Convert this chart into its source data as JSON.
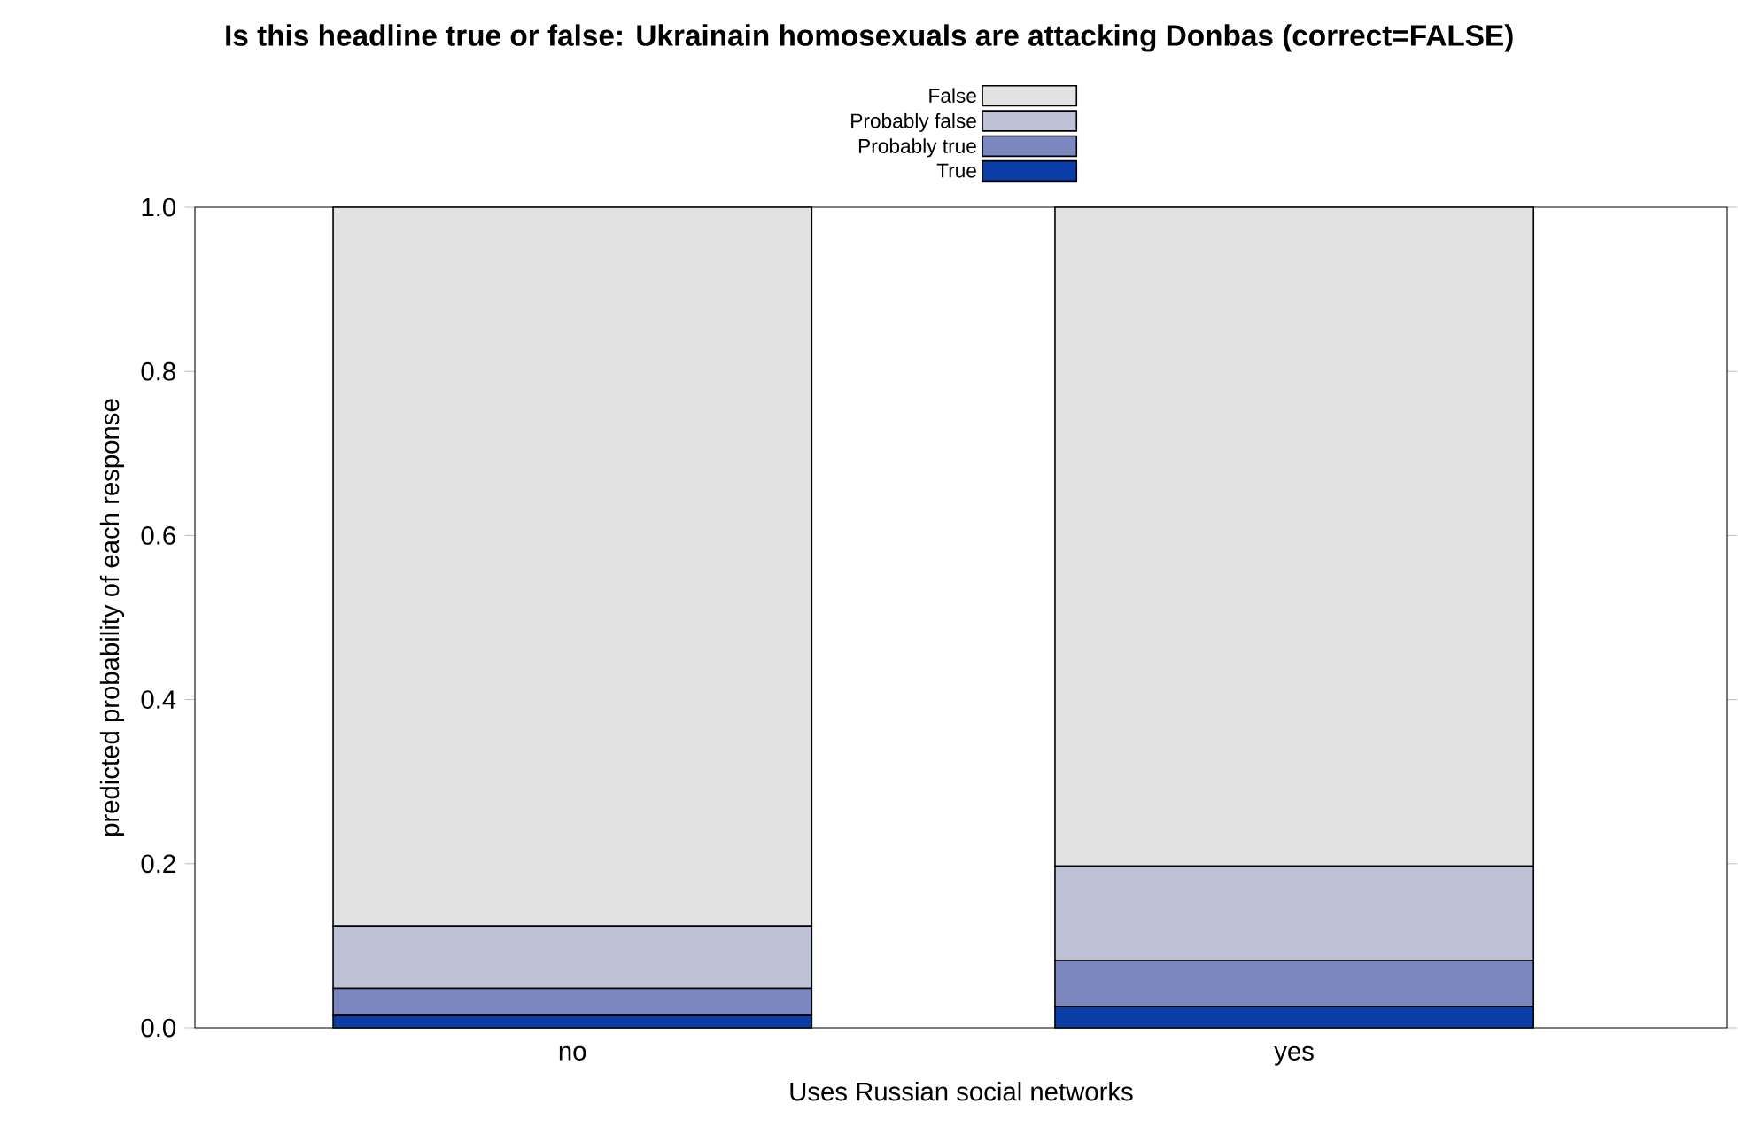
{
  "chart_data": {
    "type": "bar",
    "stacked": true,
    "title": "Is this headline true or false: Ukrainain homosexuals are attacking Donbas (correct=FALSE)",
    "xlabel": "Uses Russian social networks",
    "ylabel": "predicted probability of each response",
    "categories": [
      "no",
      "yes"
    ],
    "series": [
      {
        "name": "True",
        "color": "#0b3da6",
        "values": [
          0.015,
          0.026
        ]
      },
      {
        "name": "Probably true",
        "color": "#7b88c0",
        "values": [
          0.033,
          0.056
        ]
      },
      {
        "name": "Probably false",
        "color": "#bcc1d6",
        "values": [
          0.076,
          0.115
        ]
      },
      {
        "name": "False",
        "color": "#e2e2e2",
        "values": [
          0.876,
          0.803
        ]
      }
    ],
    "ylim": [
      0,
      1
    ],
    "yticks": [
      {
        "value": 0,
        "label": "0.0"
      },
      {
        "value": 0.2,
        "label": "0.2"
      },
      {
        "value": 0.4,
        "label": "0.4"
      },
      {
        "value": 0.6,
        "label": "0.6"
      },
      {
        "value": 0.8,
        "label": "0.8"
      },
      {
        "value": 1,
        "label": "1.0"
      }
    ],
    "grid": false,
    "legend": "top"
  }
}
